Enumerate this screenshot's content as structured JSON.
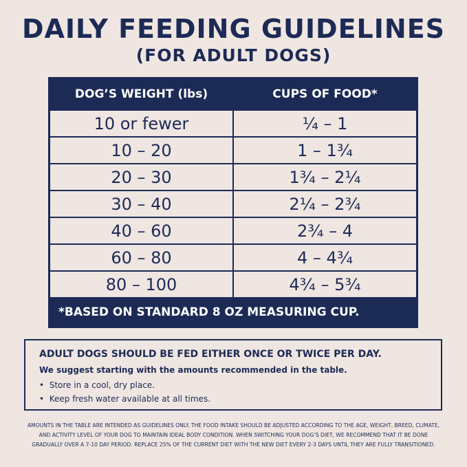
{
  "header": {
    "title": "DAILY FEEDING GUIDELINES",
    "subtitle": "(FOR ADULT DOGS)"
  },
  "table": {
    "columns": [
      "DOG’S WEIGHT (lbs)",
      "CUPS OF FOOD*"
    ],
    "rows": [
      [
        "10 or fewer",
        "¼ – 1"
      ],
      [
        "10 – 20",
        "1 – 1¾"
      ],
      [
        "20 – 30",
        "1¾ – 2¼"
      ],
      [
        "30 – 40",
        "2¼ – 2¾"
      ],
      [
        "40 – 60",
        "2¾ – 4"
      ],
      [
        "60 – 80",
        "4 – 4¾"
      ],
      [
        "80 – 100",
        "4¾ – 5¾"
      ]
    ],
    "footnote": "*BASED ON STANDARD 8 OZ MEASURING CUP."
  },
  "notes": {
    "heading": "ADULT DOGS SHOULD BE FED EITHER ONCE OR TWICE PER DAY.",
    "intro": "We suggest starting with the amounts recommended in the table.",
    "bullets": [
      "Store in a cool, dry place.",
      "Keep fresh water available at all times."
    ]
  },
  "disclaimer": [
    "AMOUNTS IN THE TABLE ARE INTENDED AS GUIDELINES ONLY. THE FOOD INTAKE SHOULD BE ADJUSTED ACCORDING TO THE AGE, WEIGHT, BREED, CLIMATE,",
    "AND ACTIVITY LEVEL OF YOUR DOG TO MAINTAIN IDEAL BODY CONDITION. WHEN SWITCHING YOUR DOG’S DIET, WE RECOMMEND THAT IT BE DONE",
    "GRADUALLY OVER A 7-10 DAY PERIOD. REPLACE 25% OF THE CURRENT DIET WITH THE NEW DIET EVERY 2-3 DAYS UNTIL THEY ARE FULLY TRANSITIONED."
  ]
}
